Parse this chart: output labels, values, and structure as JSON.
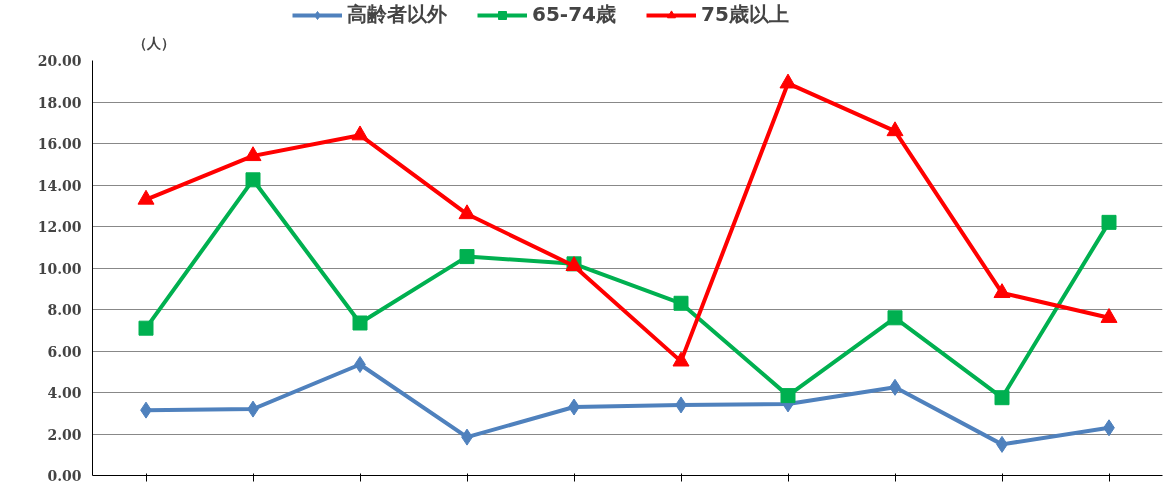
{
  "chart_data": {
    "type": "line",
    "ylabel": "（人）",
    "categories": [
      null,
      null,
      null,
      null,
      null,
      null,
      null,
      null,
      null,
      null
    ],
    "series": [
      {
        "name": "高齢者以外",
        "color": "#4f81bd",
        "marker": "diamond",
        "values": [
          3.15,
          3.2,
          5.35,
          1.85,
          3.3,
          3.4,
          3.45,
          4.25,
          1.5,
          2.3
        ]
      },
      {
        "name": "65-74歳",
        "color": "#00b050",
        "marker": "square",
        "values": [
          7.1,
          14.25,
          7.35,
          10.55,
          10.2,
          8.3,
          3.85,
          7.6,
          3.75,
          12.2
        ]
      },
      {
        "name": "75歳以上",
        "color": "#ff0000",
        "marker": "triangle",
        "values": [
          13.3,
          15.4,
          16.4,
          12.6,
          10.1,
          5.5,
          18.9,
          16.6,
          8.8,
          7.6
        ]
      }
    ],
    "ylim": [
      0,
      20
    ],
    "yticks": [
      {
        "value": 0,
        "label": "0.00"
      },
      {
        "value": 2,
        "label": "2.00"
      },
      {
        "value": 4,
        "label": "4.00"
      },
      {
        "value": 6,
        "label": "6.00"
      },
      {
        "value": 8,
        "label": "8.00"
      },
      {
        "value": 10,
        "label": "10.00"
      },
      {
        "value": 12,
        "label": "12.00"
      },
      {
        "value": 14,
        "label": "14.00"
      },
      {
        "value": 16,
        "label": "16.00"
      },
      {
        "value": 18,
        "label": "18.00"
      },
      {
        "value": 20,
        "label": "20.00"
      }
    ],
    "grid": "y",
    "legend": "top",
    "line_style": "solid"
  }
}
